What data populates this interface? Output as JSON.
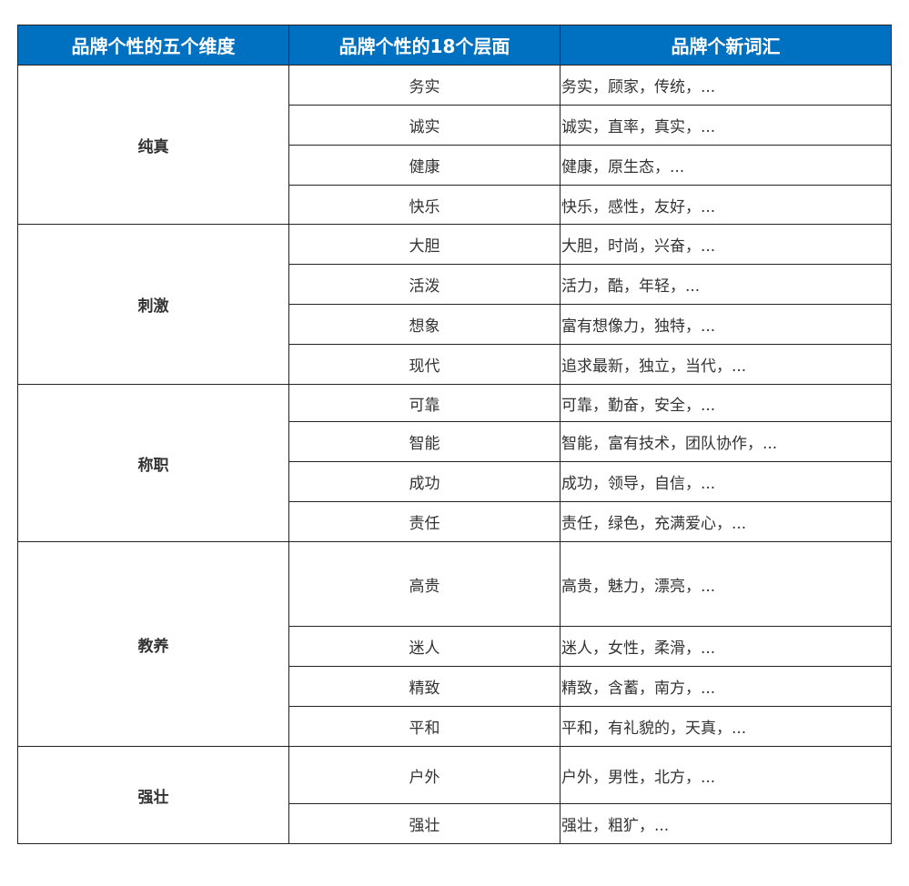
{
  "colors": {
    "header_bg": "#0070c0",
    "header_text": "#ffffff"
  },
  "header": [
    "品牌个性的五个维度",
    "品牌个性的18个层面",
    "品牌个新词汇"
  ],
  "dimensions": [
    {
      "name": "纯真",
      "facets": [
        {
          "facet": "务实",
          "words": "务实，顾家，传统，..."
        },
        {
          "facet": "诚实",
          "words": "诚实，直率，真实，..."
        },
        {
          "facet": "健康",
          "words": "健康，原生态，..."
        },
        {
          "facet": "快乐",
          "words": "快乐，感性，友好，..."
        }
      ]
    },
    {
      "name": "刺激",
      "facets": [
        {
          "facet": "大胆",
          "words": "大胆，时尚，兴奋，..."
        },
        {
          "facet": "活泼",
          "words": "活力，酷，年轻，..."
        },
        {
          "facet": "想象",
          "words": "富有想像力，独特，..."
        },
        {
          "facet": "现代",
          "words": "追求最新，独立，当代，..."
        }
      ]
    },
    {
      "name": "称职",
      "facets": [
        {
          "facet": "可靠",
          "words": "可靠，勤奋，安全，..."
        },
        {
          "facet": "智能",
          "words": "智能，富有技术，团队协作，..."
        },
        {
          "facet": "成功",
          "words": "成功，领导，自信，..."
        },
        {
          "facet": "责任",
          "words": "责任，绿色，充满爱心，..."
        }
      ]
    },
    {
      "name": "教养",
      "facets": [
        {
          "facet": "高贵",
          "words": "高贵，魅力，漂亮，..."
        },
        {
          "facet": "迷人",
          "words": "迷人，女性，柔滑，..."
        },
        {
          "facet": "精致",
          "words": "精致，含蓄，南方，..."
        },
        {
          "facet": "平和",
          "words": "平和，有礼貌的，天真，..."
        }
      ]
    },
    {
      "name": "强壮",
      "facets": [
        {
          "facet": "户外",
          "words": "户外，男性，北方，..."
        },
        {
          "facet": "强壮",
          "words": "强壮，粗犷，..."
        }
      ]
    }
  ]
}
